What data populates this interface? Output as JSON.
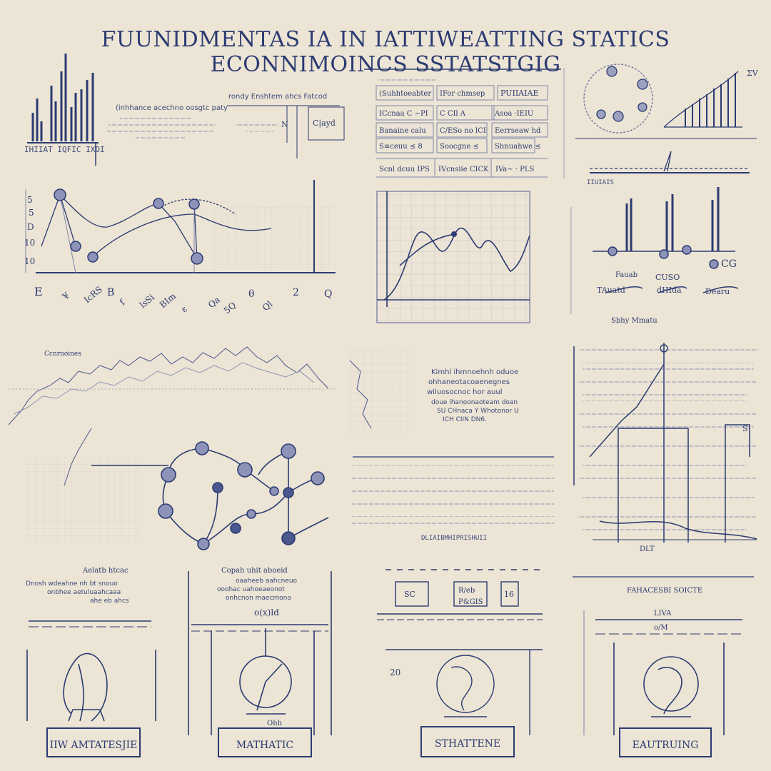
{
  "title": "FUUNIDMENTAS IA IN IATTIWEATTING STATICS ECONNIMOINCS SSTATSTGIG",
  "colors": {
    "ink": "#2b3b72",
    "background": "#ece4d4",
    "grid": "#b9bcd0",
    "node": "#8d93b8"
  },
  "panels": {
    "bar_chart_top_left": {
      "caption": "IHIIAT IQFIC IXOI"
    },
    "text_block_top_left": {
      "heading": "(inhhance acechno oosgtc paty"
    },
    "formula_block_top": {
      "heading": "rondy Enshtem ahcs Fatcod",
      "label_a": "N",
      "label_b": "C|ayd"
    },
    "table_top": {
      "header": [
        "(Suhhtoeabter",
        "IFor chmsep",
        "PUIIAIAE"
      ],
      "rows": [
        [
          "ICcnaa C  ~PI",
          "C CIl   A",
          "Asoa ·IEIU"
        ],
        [
          "Banaine calu",
          "C/ESo no lCI",
          "Eerrseaw hd"
        ],
        [
          "S≡ceuu ≤  8",
          "Soocgne ≤",
          "Shnuahwe ≤"
        ],
        [
          "Scnl dcuu IPS",
          "IVcnsiie CICK",
          "IVa~ · PLS"
        ]
      ]
    },
    "circle_and_ramp_top_right": {
      "axis_label": "ΣV",
      "caption": "IIUIAIS"
    },
    "network_plot_left": {
      "y_ticks": [
        "5",
        "5",
        "D",
        "10",
        "10"
      ],
      "x_labels": [
        "E",
        "¥",
        "IcRS",
        "B",
        "f",
        "lsSi",
        "BIm",
        "ε",
        "Qa",
        "5Q",
        "θ",
        "Ql",
        "2",
        "Q"
      ]
    },
    "wave_grid_center": {},
    "spike_chart_right": {
      "labels": [
        "Fauab",
        "CUSO",
        "CG"
      ],
      "sub_labels": [
        "TAuatd",
        "dHIda",
        "Dearu"
      ],
      "caption": "Sbhy Mmatu"
    },
    "noisy_line_middle_left": {
      "label": "Ccnrnoines"
    },
    "scatter_middle_center": {
      "text": [
        "Kimhl ihmnoehnh oduoe",
        "ohhaneotacoaenegnes",
        "wiluosocnoc hor auul",
        "doue ihanoonaoteam doan",
        "SU CHnaca Y Whotonor U",
        "ICH CIIN DN6."
      ]
    },
    "line_chart_right_middle": {
      "label": "S",
      "bottom_label": "DLT"
    },
    "graph_network_middle": {},
    "text_lines_middle": {
      "caption": "DLIAIBMHIPRISHUII"
    },
    "bottom_cards": [
      {
        "header": "Aelatb htcac",
        "sub": [
          "Dnosh wdeahne nh bt snouo",
          "onbhee aetuluaahcaaa",
          "ahe eb ahcs"
        ],
        "label": "IIW AMTATESJIE"
      },
      {
        "header": "Copah uhit aboeid",
        "sub": [
          "oaaheeb aahcneuo",
          "ooohac uahoeaeonot",
          "onhcnon maecmono"
        ],
        "mark": "o(x)ld",
        "label": "MATHATIC",
        "axis": "Ohh"
      },
      {
        "header": "",
        "sub": [
          "SC",
          "R/eb",
          "P&GIS",
          "16"
        ],
        "label": "STHATTENE",
        "tick": "20"
      },
      {
        "header": "FAHACESBI SOICTE",
        "sub": [
          "LIVA",
          "o/M"
        ],
        "label": "EAUTRUING"
      }
    ]
  }
}
